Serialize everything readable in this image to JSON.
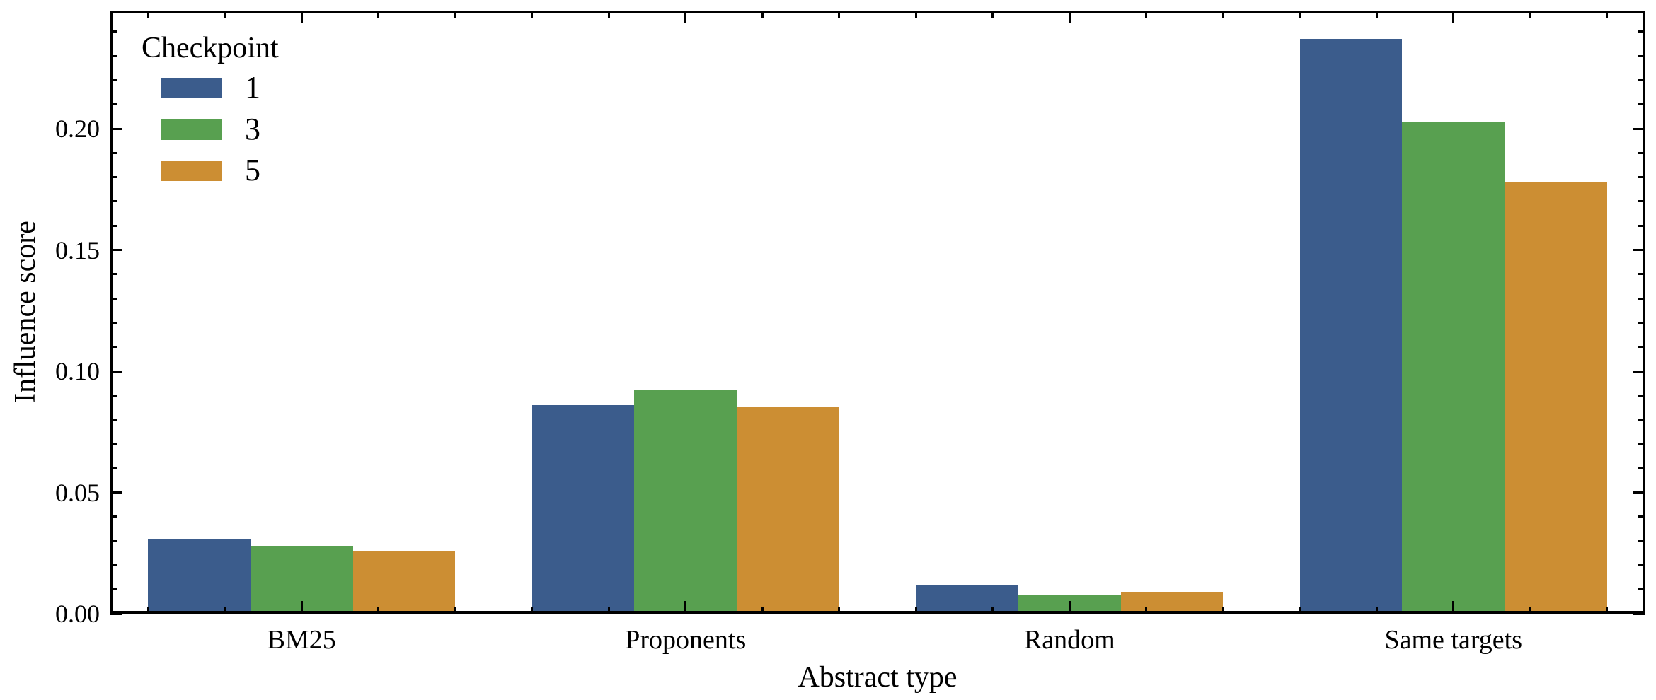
{
  "figure": {
    "background": "#ffffff",
    "text_color": "#000000",
    "axis_color": "#000000"
  },
  "chart_data": {
    "type": "bar",
    "title": "",
    "xlabel": "Abstract type",
    "ylabel": "Influence score",
    "categories": [
      "BM25",
      "Proponents",
      "Random",
      "Same targets"
    ],
    "series": [
      {
        "name": "1",
        "color": "#3B5C8C",
        "values": [
          0.031,
          0.086,
          0.012,
          0.237
        ]
      },
      {
        "name": "3",
        "color": "#58A050",
        "values": [
          0.028,
          0.092,
          0.008,
          0.203
        ]
      },
      {
        "name": "5",
        "color": "#CC8E33",
        "values": [
          0.026,
          0.085,
          0.009,
          0.178
        ]
      }
    ],
    "legend": {
      "title": "Checkpoint",
      "entries": [
        "1",
        "3",
        "5"
      ],
      "position": "upper-left",
      "frame": false
    },
    "ylim": [
      0,
      0.2487
    ],
    "ytick_values": [
      0,
      0.05,
      0.1,
      0.15,
      0.2
    ],
    "yticks": [
      "0.00",
      "0.05",
      "0.10",
      "0.15",
      "0.20"
    ],
    "y_minor_interval": 0.01,
    "x_minor_per_category": 5,
    "bar_group_fraction": 0.8,
    "grid": false,
    "tick_direction": "in"
  }
}
